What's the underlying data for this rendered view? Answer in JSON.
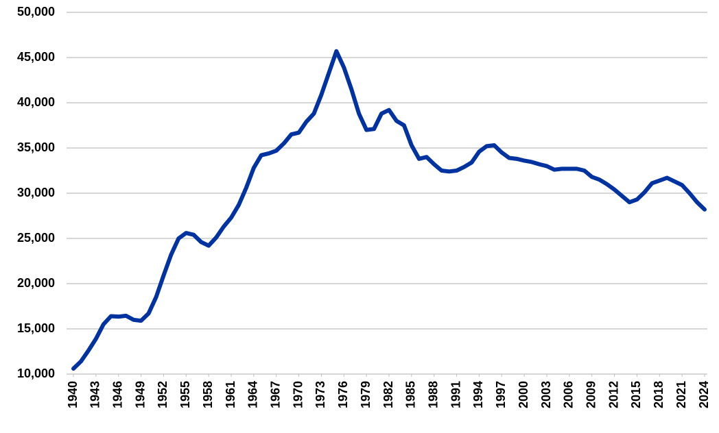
{
  "chart_data": {
    "type": "line",
    "x": [
      1940,
      1941,
      1942,
      1943,
      1944,
      1945,
      1946,
      1947,
      1948,
      1949,
      1950,
      1951,
      1952,
      1953,
      1954,
      1955,
      1956,
      1957,
      1958,
      1959,
      1960,
      1961,
      1962,
      1963,
      1964,
      1965,
      1966,
      1967,
      1968,
      1969,
      1970,
      1971,
      1972,
      1973,
      1974,
      1975,
      1976,
      1977,
      1978,
      1979,
      1980,
      1981,
      1982,
      1983,
      1984,
      1985,
      1986,
      1987,
      1988,
      1989,
      1990,
      1991,
      1992,
      1993,
      1994,
      1995,
      1996,
      1997,
      1998,
      1999,
      2000,
      2001,
      2002,
      2003,
      2004,
      2005,
      2006,
      2007,
      2008,
      2009,
      2010,
      2011,
      2012,
      2013,
      2014,
      2015,
      2016,
      2017,
      2018,
      2019,
      2020,
      2021,
      2022,
      2023,
      2024
    ],
    "series": [
      {
        "color": "#0033a0",
        "values": [
          10600,
          11400,
          12600,
          13900,
          15500,
          16400,
          16350,
          16450,
          16000,
          15900,
          16700,
          18500,
          20900,
          23200,
          25000,
          25600,
          25400,
          24600,
          24200,
          25100,
          26300,
          27300,
          28700,
          30600,
          32800,
          34200,
          34400,
          34700,
          35500,
          36500,
          36700,
          37900,
          38800,
          40900,
          43300,
          45700,
          43900,
          41500,
          38800,
          37000,
          37100,
          38800,
          39200,
          38000,
          37500,
          35300,
          33800,
          34000,
          33200,
          32500,
          32400,
          32500,
          32900,
          33400,
          34600,
          35200,
          35300,
          34500,
          33900,
          33800,
          33600,
          33450,
          33200,
          33000,
          32600,
          32700,
          32700,
          32700,
          32500,
          31800,
          31500,
          31000,
          30400,
          29700,
          29000,
          29300,
          30100,
          31100,
          31400,
          31700,
          31300,
          30900,
          30000,
          29000,
          28200
        ]
      }
    ],
    "xlim": [
      1940,
      2024
    ],
    "xticks": [
      1940,
      1943,
      1946,
      1949,
      1952,
      1955,
      1958,
      1961,
      1964,
      1967,
      1970,
      1973,
      1976,
      1979,
      1982,
      1985,
      1988,
      1991,
      1994,
      1997,
      2000,
      2003,
      2006,
      2009,
      2012,
      2015,
      2018,
      2021,
      2024
    ],
    "ylim": [
      10000,
      50000
    ],
    "yticks": [
      {
        "value": 10000,
        "label": "10,000"
      },
      {
        "value": 15000,
        "label": "15,000"
      },
      {
        "value": 20000,
        "label": "20,000"
      },
      {
        "value": 25000,
        "label": "25,000"
      },
      {
        "value": 30000,
        "label": "30,000"
      },
      {
        "value": 35000,
        "label": "35,000"
      },
      {
        "value": 40000,
        "label": "40,000"
      },
      {
        "value": 45000,
        "label": "45,000"
      },
      {
        "value": 50000,
        "label": "50,000"
      }
    ],
    "grid": true
  }
}
